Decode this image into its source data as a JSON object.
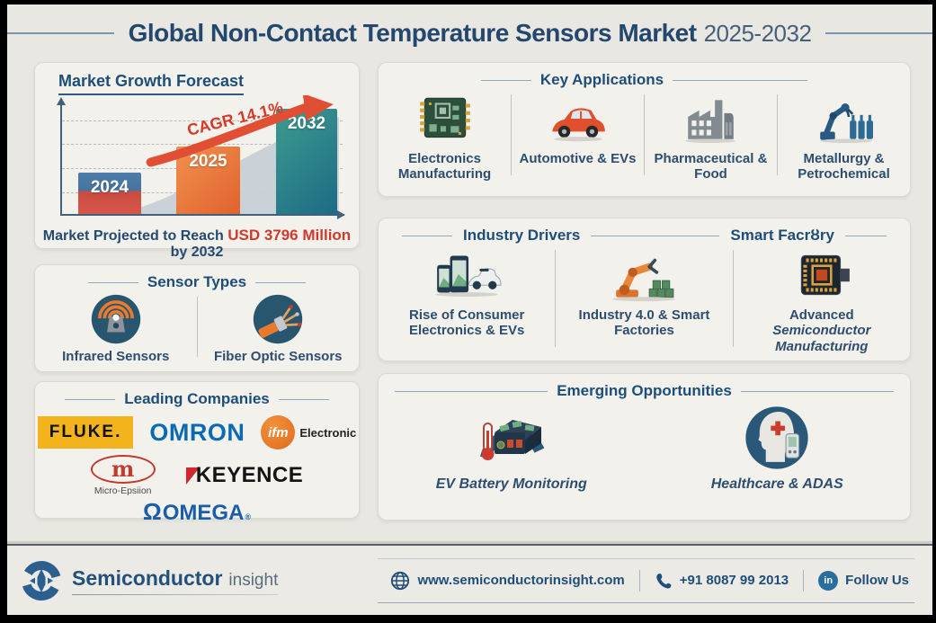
{
  "title": {
    "main": "Global Non-Contact Temperature Sensors Market",
    "period": "2025-2032"
  },
  "market_growth": {
    "heading": "Market Growth Forecast",
    "cagr_annotation": "CAGR 14.1%",
    "caption": {
      "prefix": "Market Projected to Reach",
      "highlight": "USD 3796 Million",
      "suffix": "by 2032"
    }
  },
  "chart_data": {
    "type": "bar",
    "title": "Market Growth Forecast",
    "categories": [
      "2024",
      "2025",
      "2032"
    ],
    "series": [
      {
        "name": "Market size (relative bar height, % of 2032 bar)",
        "values": [
          39,
          64,
          100
        ]
      }
    ],
    "annotation": "CAGR 14.1%",
    "projected_2032_usd_million": 3796,
    "caption": "Market Projected to Reach USD 3796 Million by 2032",
    "xlabel": "",
    "ylabel": "",
    "grid": "dashed-horizontal",
    "bar_colors": [
      "#4e7ca8/#d8584a",
      "#e8743a",
      "#27808e"
    ],
    "legend": "none"
  },
  "sensor_types": {
    "heading": "Sensor Types",
    "items": [
      {
        "label": "Infrared Sensors",
        "icon": "infrared-sensor-icon"
      },
      {
        "label": "Fiber Optic Sensors",
        "icon": "fiber-optic-cable-icon"
      }
    ]
  },
  "leading_companies": {
    "heading": "Leading Companies",
    "companies": [
      {
        "name": "FLUKE."
      },
      {
        "name": "OMRON"
      },
      {
        "name": "ifm",
        "suffix": "Electronic"
      },
      {
        "name": "m",
        "caption": "Micro-Epsiion"
      },
      {
        "name": "KEYENCE"
      },
      {
        "symbol": "Ω",
        "name": "OMEGA",
        "reg": "®"
      }
    ]
  },
  "key_applications": {
    "heading": "Key Applications",
    "items": [
      {
        "label": "Electronics Manufacturing",
        "icon": "circuit-board-icon"
      },
      {
        "label": "Automotive & EVs",
        "icon": "car-icon"
      },
      {
        "label": "Pharmaceutical & Food",
        "icon": "factory-icon"
      },
      {
        "label": "Metallurgy & Petrochemical",
        "icon": "robot-arm-bottles-icon"
      }
    ]
  },
  "industry_drivers": {
    "heading_left": "Industry Drivers",
    "heading_right": "Smart Facrȣry",
    "items": [
      {
        "label": "Rise of Consumer Electronics & EVs",
        "icon": "phones-car-icon"
      },
      {
        "label": "Industry 4.0 & Smart Factories",
        "icon": "industrial-robot-icon"
      },
      {
        "label": "Advanced",
        "sublabel": "Semiconductor Manufacturing",
        "icon": "semiconductor-chip-icon"
      }
    ]
  },
  "emerging_opportunities": {
    "heading": "Emerging Opportunities",
    "items": [
      {
        "label": "EV Battery Monitoring",
        "icon": "ev-battery-thermometer-icon"
      },
      {
        "label": "Healthcare & ADAS",
        "icon": "healthcare-head-icon"
      }
    ]
  },
  "footer": {
    "brand": {
      "name": "Semiconductor",
      "suffix": "insight"
    },
    "website": "www.semiconductorinsight.com",
    "phone": "+91 8087 99 2013",
    "social": "Follow Us",
    "linkedin_abbr": "in"
  },
  "colors": {
    "heading_blue": "#1d4e79",
    "title_blue": "#24476e",
    "accent_red": "#cf3a2c",
    "bar_2024_top": "#4e7ca8",
    "bar_2024_bottom": "#d8584a",
    "bar_2025": "#e8743a",
    "bar_2032": "#27808e",
    "page_bg": "#e9e7e2",
    "panel_bg": "#f3f1ec",
    "fluke_yellow": "#f2b31c",
    "omron_blue": "#0a6ab4",
    "ifm_orange": "#e8762a",
    "micro_epsilon_red": "#c23a2e",
    "keyence_red": "#d22730",
    "omega_blue": "#1a5ea8",
    "linkedin_blue": "#2a6ea0",
    "icon_navy": "#29566f",
    "icon_orange": "#e87a2e"
  }
}
